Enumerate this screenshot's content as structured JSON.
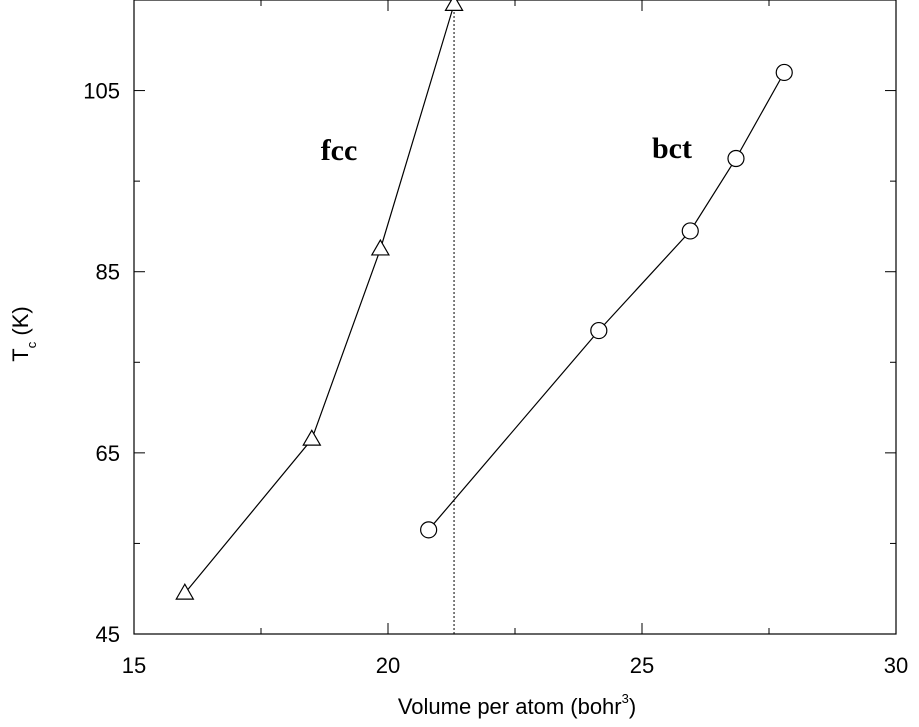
{
  "chart_data": {
    "type": "line",
    "xlabel": "Volume per atom (bohr",
    "xlabel_sup": "3",
    "xlabel_end": ")",
    "ylabel_main": "T",
    "ylabel_sub": "c",
    "ylabel_rest": " (K)",
    "xlim": [
      15,
      30
    ],
    "ylim": [
      45,
      115
    ],
    "xticks": [
      15,
      20,
      25,
      30
    ],
    "yticks": [
      45,
      65,
      85,
      105
    ],
    "grid": false,
    "reference_line": {
      "x": 21.3,
      "style": "dotted"
    },
    "series": [
      {
        "name": "fcc",
        "marker": "triangle",
        "x": [
          16.0,
          18.5,
          19.85,
          21.3
        ],
        "y": [
          49.5,
          66.5,
          87.5,
          114.5
        ]
      },
      {
        "name": "bct",
        "marker": "circle",
        "x": [
          20.8,
          24.15,
          25.95,
          26.85,
          27.8
        ],
        "y": [
          56.5,
          78.5,
          89.5,
          97.5,
          107.0
        ]
      }
    ]
  }
}
